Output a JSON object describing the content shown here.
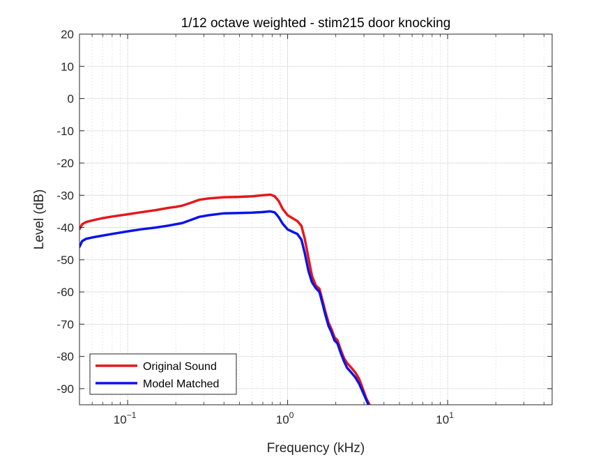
{
  "chart_data": {
    "type": "line",
    "title": "1/12 octave weighted - stim215 door knocking",
    "xlabel": "Frequency (kHz)",
    "ylabel": "Level (dB)",
    "xscale": "log",
    "xlim": [
      0.05,
      45
    ],
    "ylim": [
      -95,
      20
    ],
    "xticks": [
      {
        "value": 0.1,
        "base": "10",
        "exp": "−1"
      },
      {
        "value": 1,
        "base": "10",
        "exp": "0"
      },
      {
        "value": 10,
        "base": "10",
        "exp": "1"
      }
    ],
    "yticks": [
      20,
      10,
      0,
      -10,
      -20,
      -30,
      -40,
      -50,
      -60,
      -70,
      -80,
      -90
    ],
    "grid": true,
    "minor_grid": true,
    "legend_location": "bottom-left",
    "series": [
      {
        "name": "Original Sound",
        "color": "#e4181c",
        "x": [
          0.05,
          0.052,
          0.055,
          0.06,
          0.07,
          0.08,
          0.1,
          0.12,
          0.15,
          0.18,
          0.2,
          0.22,
          0.25,
          0.28,
          0.32,
          0.4,
          0.5,
          0.6,
          0.7,
          0.78,
          0.83,
          0.88,
          0.93,
          1.0,
          1.08,
          1.15,
          1.22,
          1.28,
          1.35,
          1.42,
          1.5,
          1.58,
          1.65,
          1.72,
          1.8,
          1.88,
          1.96,
          2.05,
          2.15,
          2.25,
          2.35,
          2.5,
          2.65,
          2.8,
          2.95,
          3.1,
          3.25
        ],
        "y": [
          -40.5,
          -39.0,
          -38.3,
          -37.8,
          -37.1,
          -36.6,
          -35.9,
          -35.3,
          -34.6,
          -33.9,
          -33.6,
          -33.2,
          -32.3,
          -31.4,
          -31.0,
          -30.6,
          -30.5,
          -30.3,
          -30.0,
          -29.8,
          -30.3,
          -31.8,
          -34.2,
          -36.2,
          -37.2,
          -38.0,
          -39.5,
          -43.5,
          -49.5,
          -55.0,
          -58.0,
          -59.0,
          -62.5,
          -66.0,
          -69.5,
          -71.5,
          -74.0,
          -75.0,
          -78.0,
          -80.5,
          -82.0,
          -83.5,
          -85.0,
          -87.0,
          -90.0,
          -93.0,
          -95.0
        ]
      },
      {
        "name": "Model Matched",
        "color": "#0a14e6",
        "x": [
          0.05,
          0.052,
          0.055,
          0.06,
          0.07,
          0.08,
          0.1,
          0.12,
          0.15,
          0.18,
          0.2,
          0.22,
          0.25,
          0.28,
          0.32,
          0.4,
          0.5,
          0.6,
          0.7,
          0.78,
          0.83,
          0.88,
          0.93,
          1.0,
          1.08,
          1.15,
          1.22,
          1.28,
          1.35,
          1.42,
          1.5,
          1.58,
          1.65,
          1.72,
          1.8,
          1.88,
          1.96,
          2.05,
          2.15,
          2.25,
          2.35,
          2.5,
          2.65,
          2.8,
          2.95,
          3.1,
          3.2
        ],
        "y": [
          -46.0,
          -44.2,
          -43.5,
          -43.1,
          -42.5,
          -42.0,
          -41.2,
          -40.6,
          -40.0,
          -39.4,
          -39.0,
          -38.6,
          -37.6,
          -36.7,
          -36.2,
          -35.6,
          -35.5,
          -35.4,
          -35.2,
          -35.0,
          -35.3,
          -36.8,
          -38.8,
          -40.6,
          -41.4,
          -42.0,
          -43.8,
          -48.0,
          -53.5,
          -57.0,
          -58.8,
          -60.0,
          -63.5,
          -67.0,
          -70.5,
          -72.5,
          -75.0,
          -76.0,
          -79.0,
          -81.5,
          -83.5,
          -85.0,
          -86.5,
          -88.5,
          -91.0,
          -93.5,
          -95.0
        ]
      }
    ]
  }
}
